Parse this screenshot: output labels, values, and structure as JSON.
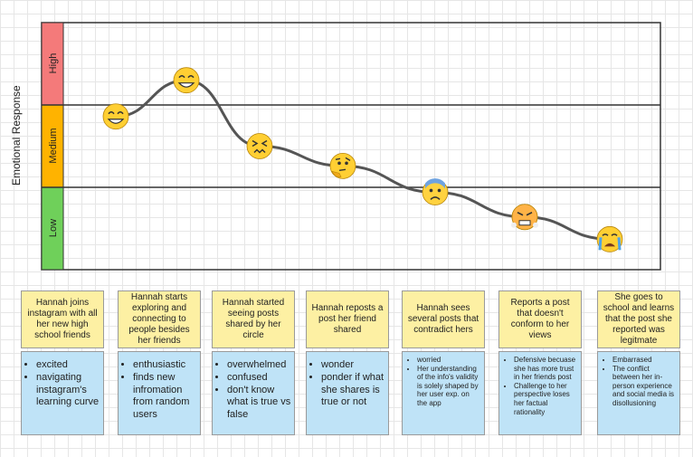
{
  "axis": {
    "ylabel": "Emotional Response"
  },
  "bands": [
    {
      "label": "High",
      "color": "#f47a7a"
    },
    {
      "label": "Medium",
      "color": "#ffb300"
    },
    {
      "label": "Low",
      "color": "#6fd05a"
    }
  ],
  "chart_data": {
    "type": "line",
    "ylabel": "Emotional Response",
    "y_categories": [
      "Low",
      "Medium",
      "High"
    ],
    "x": [
      1,
      2,
      3,
      4,
      5,
      6,
      7
    ],
    "values": [
      1.86,
      2.3,
      1.5,
      1.26,
      0.94,
      0.64,
      0.37
    ],
    "markers": [
      "grinning",
      "beaming",
      "confounded",
      "thinking",
      "anxious",
      "steaming",
      "crying"
    ]
  },
  "steps": [
    {
      "title": "Hannah joins instagram with all her new high school friends",
      "bullets": [
        "excited",
        "navigating instagram's learning curve"
      ],
      "small": false
    },
    {
      "title": "Hannah starts exploring and connecting to people besides her friends",
      "bullets": [
        "enthusiastic",
        "finds new infromation from random users"
      ],
      "small": false
    },
    {
      "title": "Hannah started seeing posts shared by her circle",
      "bullets": [
        "overwhelmed",
        "confused",
        "don't know what is true vs false"
      ],
      "small": false
    },
    {
      "title": "Hannah reposts a post her friend shared",
      "bullets": [
        "wonder",
        "ponder if what she shares is true or not"
      ],
      "small": false
    },
    {
      "title": "Hannah sees several posts that contradict hers",
      "bullets": [
        "worried",
        "Her understanding of the info's validity is solely shaped by her user exp. on the app"
      ],
      "small": true
    },
    {
      "title": "Reports a post that doesn't conform to her views",
      "bullets": [
        "Defensive becuase she has more trust in her friends post",
        "Challenge to her perspective loses her factual rationality"
      ],
      "small": true
    },
    {
      "title": "She goes to school and learns that the post she reported was legitmate",
      "bullets": [
        "Embarrased",
        "The conflict between her in-person experience and social media is disollusioning"
      ],
      "small": true
    }
  ]
}
